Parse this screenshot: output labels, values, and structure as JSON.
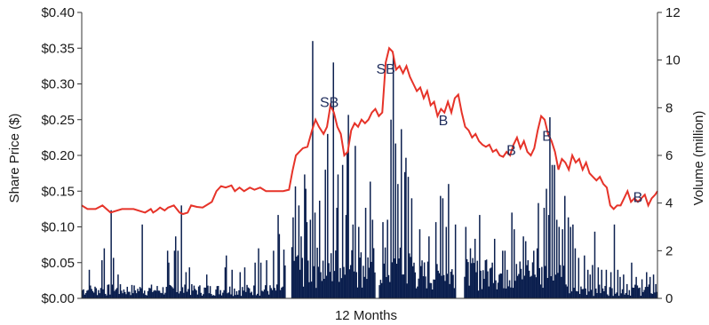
{
  "chart_data": {
    "type": "bar+line",
    "xlabel": "12 Months",
    "y_left": {
      "label": "Share Price ($)",
      "ylim": [
        0,
        0.4
      ],
      "ticks": [
        "$0.00",
        "$0.05",
        "$0.10",
        "$0.15",
        "$0.20",
        "$0.25",
        "$0.30",
        "$0.35",
        "$0.40"
      ]
    },
    "y_right": {
      "label": "Volume (million)",
      "ylim": [
        0,
        12
      ],
      "ticks": [
        "0",
        "2",
        "4",
        "6",
        "8",
        "10",
        "12"
      ]
    },
    "grid": false,
    "colors": {
      "price_line": "#e63329",
      "volume_bar": "#0b1f4e",
      "annotation": "#1f2d5c",
      "axis": "#333333"
    },
    "price_keypoints": [
      [
        0,
        0.13
      ],
      [
        5,
        0.125
      ],
      [
        12,
        0.125
      ],
      [
        18,
        0.13
      ],
      [
        25,
        0.12
      ],
      [
        35,
        0.125
      ],
      [
        45,
        0.125
      ],
      [
        55,
        0.12
      ],
      [
        60,
        0.125
      ],
      [
        62,
        0.12
      ],
      [
        65,
        0.123
      ],
      [
        68,
        0.127
      ],
      [
        72,
        0.123
      ],
      [
        75,
        0.127
      ],
      [
        80,
        0.13
      ],
      [
        85,
        0.12
      ],
      [
        88,
        0.118
      ],
      [
        92,
        0.12
      ],
      [
        95,
        0.13
      ],
      [
        100,
        0.128
      ],
      [
        105,
        0.127
      ],
      [
        110,
        0.132
      ],
      [
        113,
        0.135
      ],
      [
        117,
        0.15
      ],
      [
        121,
        0.157
      ],
      [
        125,
        0.155
      ],
      [
        130,
        0.158
      ],
      [
        133,
        0.15
      ],
      [
        137,
        0.155
      ],
      [
        141,
        0.15
      ],
      [
        146,
        0.155
      ],
      [
        150,
        0.152
      ],
      [
        155,
        0.155
      ],
      [
        160,
        0.15
      ],
      [
        165,
        0.15
      ],
      [
        170,
        0.15
      ],
      [
        175,
        0.15
      ],
      [
        180,
        0.152
      ],
      [
        183,
        0.178
      ],
      [
        186,
        0.2
      ],
      [
        189,
        0.205
      ],
      [
        192,
        0.21
      ],
      [
        196,
        0.212
      ],
      [
        200,
        0.235
      ],
      [
        203,
        0.25
      ],
      [
        206,
        0.24
      ],
      [
        210,
        0.23
      ],
      [
        213,
        0.24
      ],
      [
        216,
        0.27
      ],
      [
        219,
        0.26
      ],
      [
        222,
        0.24
      ],
      [
        225,
        0.23
      ],
      [
        228,
        0.2
      ],
      [
        231,
        0.205
      ],
      [
        234,
        0.235
      ],
      [
        237,
        0.245
      ],
      [
        240,
        0.24
      ],
      [
        243,
        0.25
      ],
      [
        246,
        0.245
      ],
      [
        249,
        0.25
      ],
      [
        252,
        0.26
      ],
      [
        255,
        0.265
      ],
      [
        258,
        0.255
      ],
      [
        261,
        0.26
      ],
      [
        264,
        0.33
      ],
      [
        267,
        0.35
      ],
      [
        270,
        0.345
      ],
      [
        273,
        0.32
      ],
      [
        276,
        0.325
      ],
      [
        279,
        0.315
      ],
      [
        282,
        0.325
      ],
      [
        285,
        0.31
      ],
      [
        288,
        0.3
      ],
      [
        291,
        0.29
      ],
      [
        294,
        0.295
      ],
      [
        297,
        0.28
      ],
      [
        300,
        0.29
      ],
      [
        303,
        0.27
      ],
      [
        306,
        0.275
      ],
      [
        309,
        0.255
      ],
      [
        312,
        0.265
      ],
      [
        315,
        0.26
      ],
      [
        318,
        0.275
      ],
      [
        321,
        0.26
      ],
      [
        324,
        0.28
      ],
      [
        327,
        0.285
      ],
      [
        330,
        0.26
      ],
      [
        333,
        0.24
      ],
      [
        336,
        0.235
      ],
      [
        339,
        0.225
      ],
      [
        342,
        0.23
      ],
      [
        345,
        0.22
      ],
      [
        348,
        0.215
      ],
      [
        351,
        0.212
      ],
      [
        354,
        0.215
      ],
      [
        357,
        0.205
      ],
      [
        360,
        0.208
      ],
      [
        363,
        0.2
      ],
      [
        366,
        0.198
      ],
      [
        369,
        0.205
      ],
      [
        372,
        0.2
      ],
      [
        375,
        0.215
      ],
      [
        378,
        0.225
      ],
      [
        381,
        0.21
      ],
      [
        384,
        0.22
      ],
      [
        387,
        0.205
      ],
      [
        390,
        0.2
      ],
      [
        393,
        0.21
      ],
      [
        396,
        0.235
      ],
      [
        399,
        0.255
      ],
      [
        402,
        0.25
      ],
      [
        405,
        0.23
      ],
      [
        408,
        0.22
      ],
      [
        411,
        0.205
      ],
      [
        414,
        0.18
      ],
      [
        417,
        0.195
      ],
      [
        420,
        0.19
      ],
      [
        423,
        0.18
      ],
      [
        426,
        0.2
      ],
      [
        429,
        0.19
      ],
      [
        432,
        0.195
      ],
      [
        435,
        0.18
      ],
      [
        438,
        0.19
      ],
      [
        441,
        0.175
      ],
      [
        444,
        0.17
      ],
      [
        447,
        0.165
      ],
      [
        450,
        0.17
      ],
      [
        453,
        0.16
      ],
      [
        456,
        0.155
      ],
      [
        459,
        0.13
      ],
      [
        462,
        0.125
      ],
      [
        465,
        0.13
      ],
      [
        468,
        0.13
      ],
      [
        471,
        0.14
      ],
      [
        474,
        0.15
      ],
      [
        477,
        0.135
      ],
      [
        480,
        0.14
      ],
      [
        483,
        0.135
      ],
      [
        486,
        0.14
      ],
      [
        489,
        0.145
      ],
      [
        492,
        0.13
      ],
      [
        495,
        0.14
      ],
      [
        498,
        0.145
      ],
      [
        500,
        0.15
      ]
    ],
    "volume_points": 500,
    "volume_spikes": [
      [
        6,
        1.2
      ],
      [
        17,
        1.6
      ],
      [
        19,
        2.1
      ],
      [
        25,
        3.7
      ],
      [
        27,
        1.7
      ],
      [
        31,
        1.0
      ],
      [
        52,
        3.1
      ],
      [
        75,
        1.5
      ],
      [
        74,
        2.0
      ],
      [
        80,
        2.0
      ],
      [
        81,
        2.6
      ],
      [
        83,
        2.0
      ],
      [
        86,
        3.9
      ],
      [
        90,
        1.1
      ],
      [
        93,
        1.3
      ],
      [
        108,
        1.0
      ],
      [
        125,
        1.8
      ],
      [
        124,
        1.3
      ],
      [
        130,
        1.2
      ],
      [
        137,
        1.1
      ],
      [
        141,
        1.3
      ],
      [
        150,
        1.5
      ],
      [
        153,
        2.1
      ],
      [
        155,
        1.5
      ],
      [
        160,
        1.6
      ],
      [
        166,
        2.0
      ],
      [
        170,
        3.5
      ],
      [
        171,
        2.7
      ],
      [
        180,
        5.4
      ],
      [
        183,
        3.4
      ],
      [
        185,
        4.7
      ],
      [
        188,
        3.9
      ],
      [
        190,
        2.6
      ],
      [
        193,
        5.2
      ],
      [
        194,
        4.6
      ],
      [
        195,
        3.2
      ],
      [
        198,
        3.3
      ],
      [
        200,
        10.8
      ],
      [
        202,
        3.6
      ],
      [
        206,
        4.1
      ],
      [
        211,
        5.4
      ],
      [
        213,
        6.9
      ],
      [
        218,
        9.9
      ],
      [
        221,
        3.8
      ],
      [
        222,
        5.2
      ],
      [
        226,
        5.6
      ],
      [
        229,
        3.5
      ],
      [
        230,
        6.1
      ],
      [
        231,
        7.7
      ],
      [
        235,
        3.1
      ],
      [
        237,
        6.4
      ],
      [
        240,
        3.0
      ],
      [
        246,
        3.8
      ],
      [
        250,
        4.9
      ],
      [
        252,
        3.3
      ],
      [
        255,
        4.6
      ],
      [
        261,
        3.2
      ],
      [
        265,
        3.3
      ],
      [
        268,
        7.5
      ],
      [
        270,
        10.2
      ],
      [
        272,
        6.5
      ],
      [
        274,
        4.8
      ],
      [
        277,
        7.1
      ],
      [
        280,
        5.3
      ],
      [
        281,
        5.9
      ],
      [
        283,
        5.1
      ],
      [
        286,
        4.2
      ],
      [
        293,
        2.9
      ],
      [
        301,
        2.6
      ],
      [
        307,
        3.2
      ],
      [
        311,
        4.3
      ],
      [
        313,
        4.2
      ],
      [
        316,
        3.0
      ],
      [
        318,
        4.8
      ],
      [
        324,
        3.1
      ],
      [
        327,
        3.9
      ],
      [
        329,
        3.0
      ],
      [
        331,
        2.8
      ],
      [
        333,
        3.0
      ],
      [
        337,
        2.1
      ],
      [
        341,
        2.5
      ],
      [
        345,
        3.5
      ],
      [
        350,
        1.6
      ],
      [
        356,
        1.5
      ],
      [
        358,
        2.5
      ],
      [
        365,
        2.0
      ],
      [
        367,
        2.0
      ],
      [
        369,
        1.2
      ],
      [
        373,
        3.6
      ],
      [
        375,
        2.9
      ],
      [
        383,
        2.6
      ],
      [
        385,
        2.4
      ],
      [
        387,
        1.6
      ],
      [
        392,
        2.0
      ],
      [
        395,
        2.1
      ],
      [
        396,
        4.0
      ],
      [
        401,
        3.8
      ],
      [
        403,
        4.6
      ],
      [
        405,
        3.5
      ],
      [
        406,
        7.6
      ],
      [
        408,
        5.6
      ],
      [
        410,
        5.6
      ],
      [
        412,
        3.3
      ],
      [
        414,
        3.0
      ],
      [
        417,
        2.9
      ],
      [
        419,
        4.3
      ],
      [
        422,
        3.4
      ],
      [
        424,
        3.0
      ],
      [
        426,
        3.1
      ],
      [
        428,
        2.1
      ],
      [
        431,
        1.7
      ],
      [
        436,
        1.8
      ],
      [
        439,
        1.2
      ],
      [
        441,
        1.0
      ],
      [
        443,
        1.4
      ],
      [
        445,
        2.8
      ],
      [
        448,
        1.3
      ],
      [
        451,
        1.2
      ],
      [
        455,
        1.2
      ],
      [
        459,
        1.1
      ],
      [
        462,
        3.1
      ],
      [
        465,
        1.2
      ],
      [
        467,
        0.9
      ],
      [
        470,
        1.0
      ],
      [
        473,
        0.6
      ],
      [
        477,
        1.5
      ],
      [
        481,
        0.9
      ],
      [
        486,
        0.8
      ],
      [
        490,
        1.1
      ],
      [
        493,
        0.9
      ],
      [
        496,
        1.0
      ],
      [
        498,
        0.6
      ]
    ],
    "volume_gaps": [
      [
        177,
        181
      ],
      [
        255,
        257
      ],
      [
        325,
        331
      ]
    ],
    "annotations": [
      {
        "text": "SB",
        "x": 215,
        "price": 0.275
      },
      {
        "text": "SB",
        "x": 264,
        "price": 0.322
      },
      {
        "text": "B",
        "x": 314,
        "price": 0.25
      },
      {
        "text": "B",
        "x": 373,
        "price": 0.208
      },
      {
        "text": "B",
        "x": 404,
        "price": 0.228
      },
      {
        "text": "B",
        "x": 483,
        "price": 0.142
      }
    ]
  }
}
